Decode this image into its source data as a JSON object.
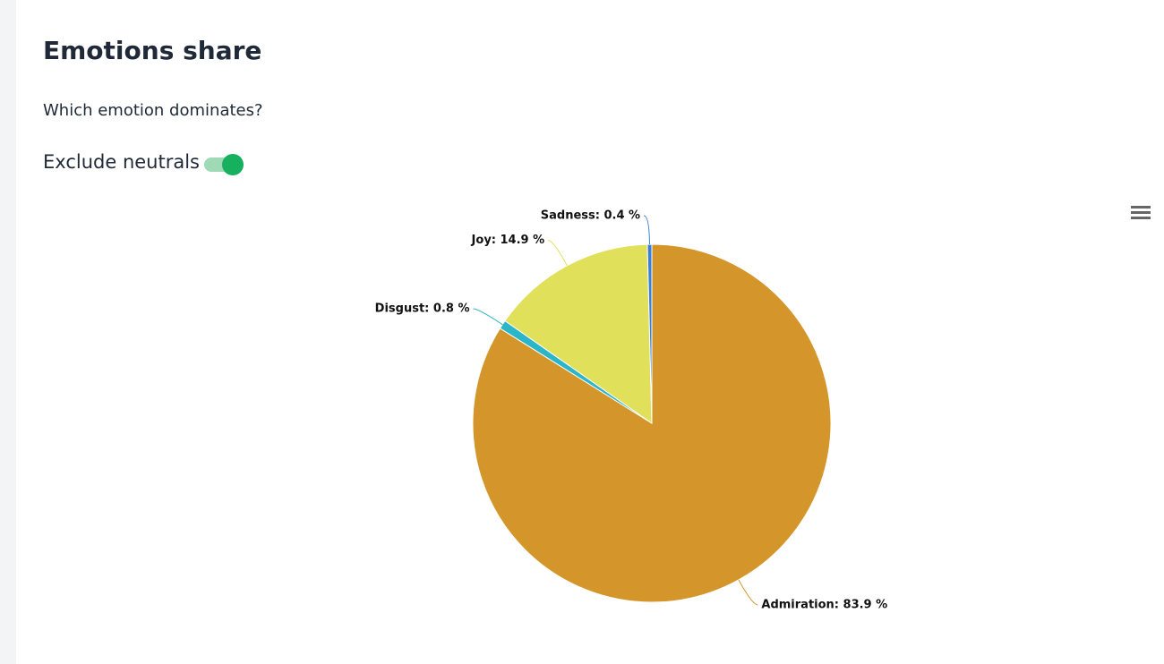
{
  "header": {
    "title": "Emotions share",
    "subtitle": "Which emotion dominates?"
  },
  "toggle": {
    "label": "Exclude neutrals",
    "on": true
  },
  "chart_data": {
    "type": "pie",
    "values": [
      83.9,
      0.8,
      14.9,
      0.4
    ],
    "value_labels": [
      "Admiration: 83.9 %",
      "Disgust: 0.8 %",
      "Joy: 14.9 %",
      "Sadness: 0.4 %"
    ],
    "colors": [
      "#d4962a",
      "#2bb5c8",
      "#e0e05a",
      "#3a7fd5"
    ]
  }
}
